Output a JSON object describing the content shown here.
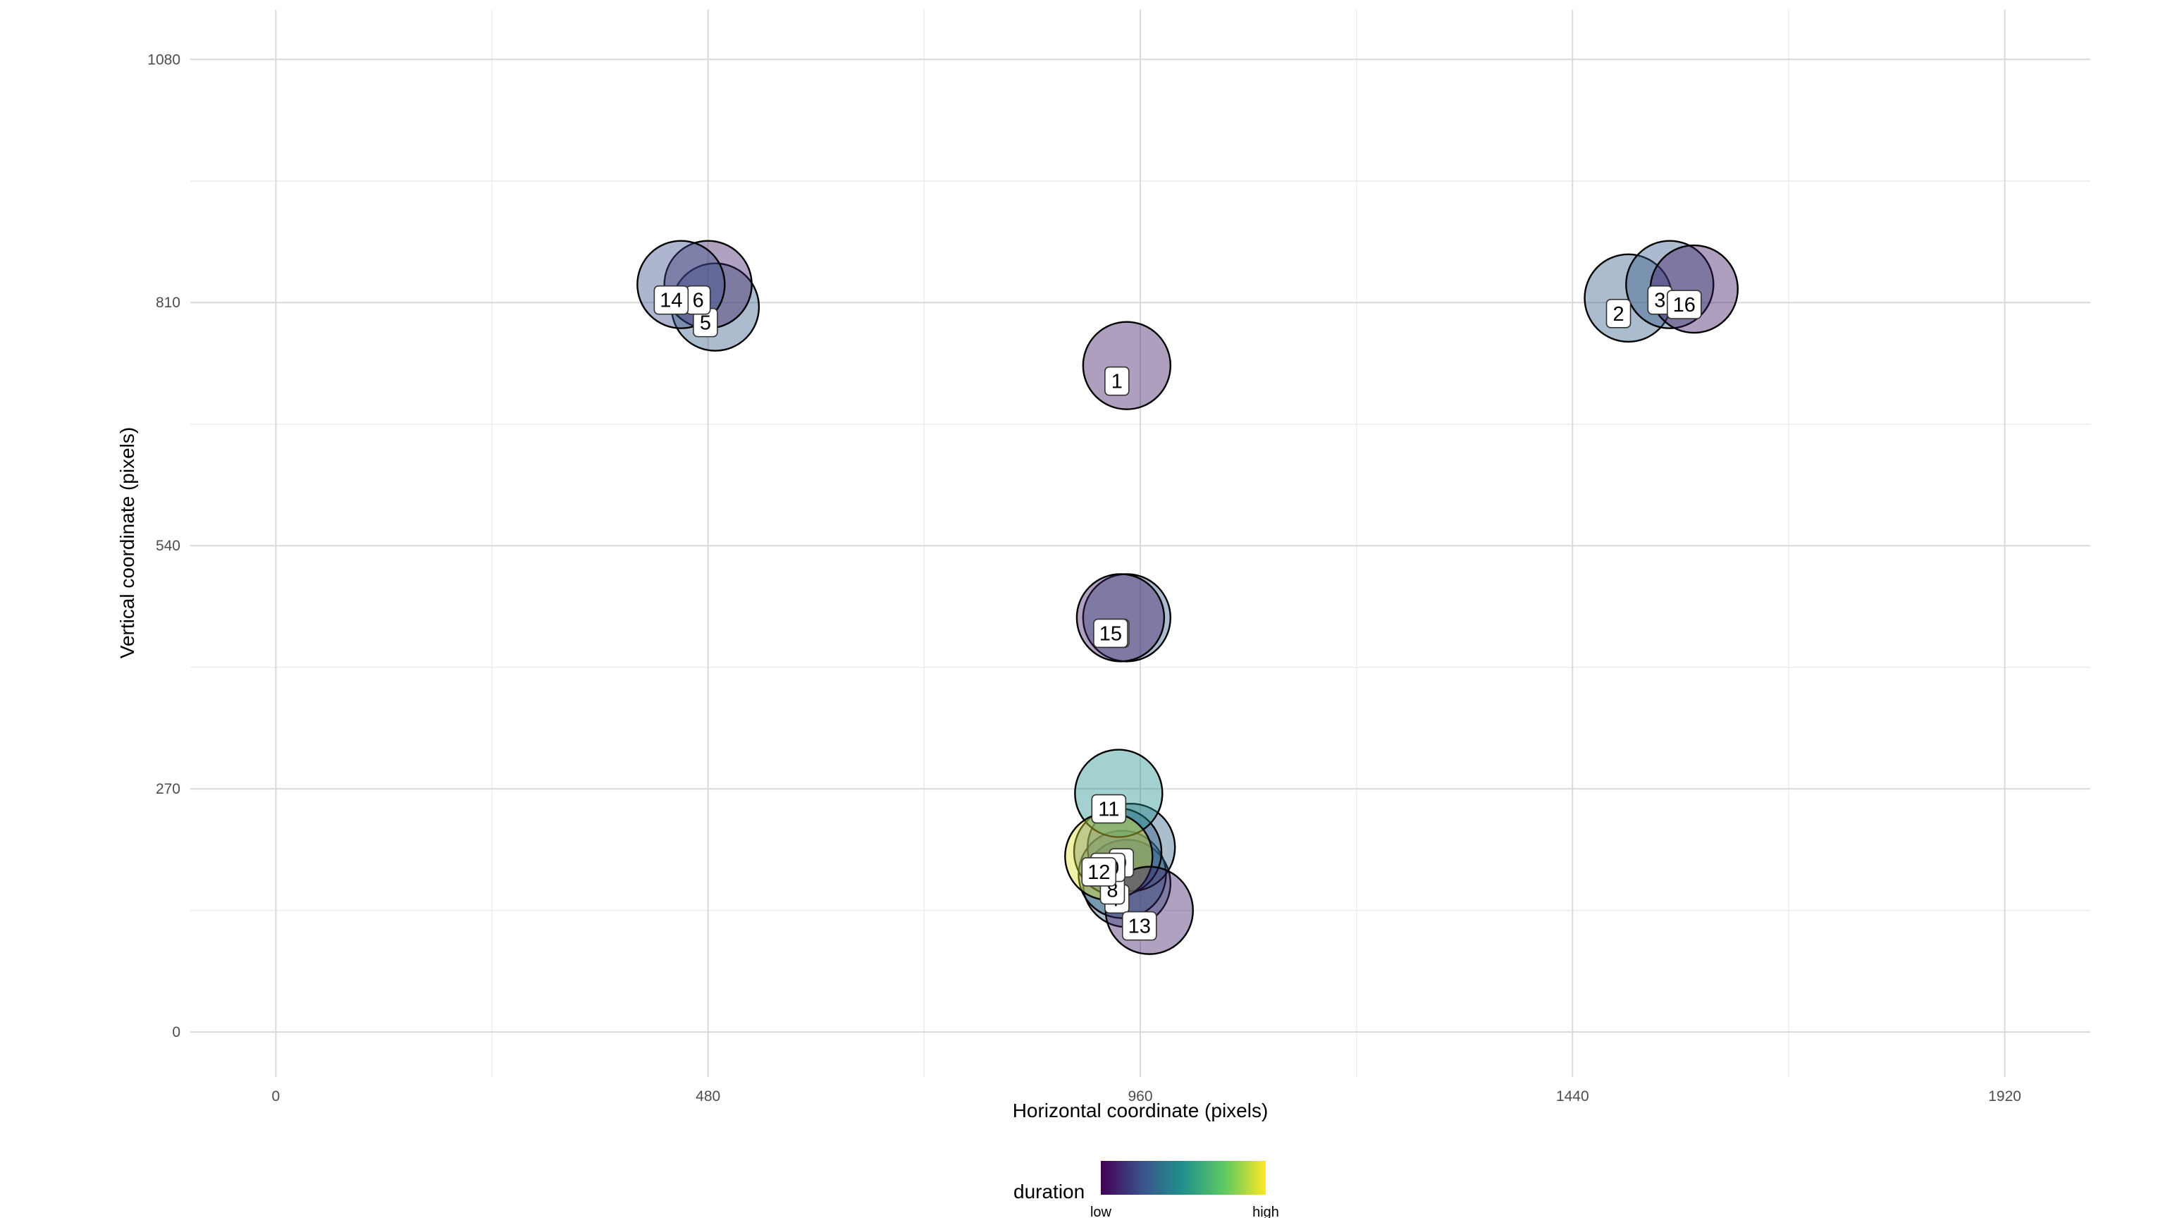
{
  "chart_data": {
    "type": "scatter",
    "xlabel": "Horizontal coordinate (pixels)",
    "ylabel": "Vertical coordinate (pixels)",
    "xlim": [
      -95,
      2015
    ],
    "ylim": [
      -50,
      1135
    ],
    "x_ticks": [
      0,
      480,
      960,
      1440,
      1920
    ],
    "y_ticks": [
      0,
      270,
      540,
      810,
      1080
    ],
    "x_tick_labels": [
      "0",
      "480",
      "960",
      "1440",
      "1920"
    ],
    "y_tick_labels": [
      "0",
      "270",
      "540",
      "810",
      "1080"
    ],
    "grid": true,
    "colorscale": [
      "#440154",
      "#3b528b",
      "#21918c",
      "#5ec962",
      "#fde725"
    ],
    "legend": {
      "title": "duration",
      "low_label": "low",
      "high_label": "high",
      "placement": "bottom"
    },
    "points": [
      {
        "id": "1",
        "x": 945,
        "y": 740,
        "duration": 0.08
      },
      {
        "id": "2",
        "x": 1502,
        "y": 815,
        "duration": 0.3
      },
      {
        "id": "3",
        "x": 1548,
        "y": 830,
        "duration": 0.28
      },
      {
        "id": "4",
        "x": 945,
        "y": 460,
        "duration": 0.28
      },
      {
        "id": "5",
        "x": 488,
        "y": 805,
        "duration": 0.3
      },
      {
        "id": "6",
        "x": 480,
        "y": 830,
        "duration": 0.1
      },
      {
        "id": "7",
        "x": 945,
        "y": 165,
        "duration": 0.3
      },
      {
        "id": "8",
        "x": 940,
        "y": 175,
        "duration": 0.35
      },
      {
        "id": "9",
        "x": 950,
        "y": 205,
        "duration": 0.32
      },
      {
        "id": "10",
        "x": 935,
        "y": 200,
        "duration": 0.3
      },
      {
        "id": "11",
        "x": 936,
        "y": 265,
        "duration": 0.5
      },
      {
        "id": "12",
        "x": 925,
        "y": 195,
        "duration": 0.95
      },
      {
        "id": "13",
        "x": 970,
        "y": 135,
        "duration": 0.1
      },
      {
        "id": "14",
        "x": 450,
        "y": 830,
        "duration": 0.25
      },
      {
        "id": "15",
        "x": 938,
        "y": 460,
        "duration": 0.1
      },
      {
        "id": "16",
        "x": 1575,
        "y": 825,
        "duration": 0.08
      }
    ]
  }
}
